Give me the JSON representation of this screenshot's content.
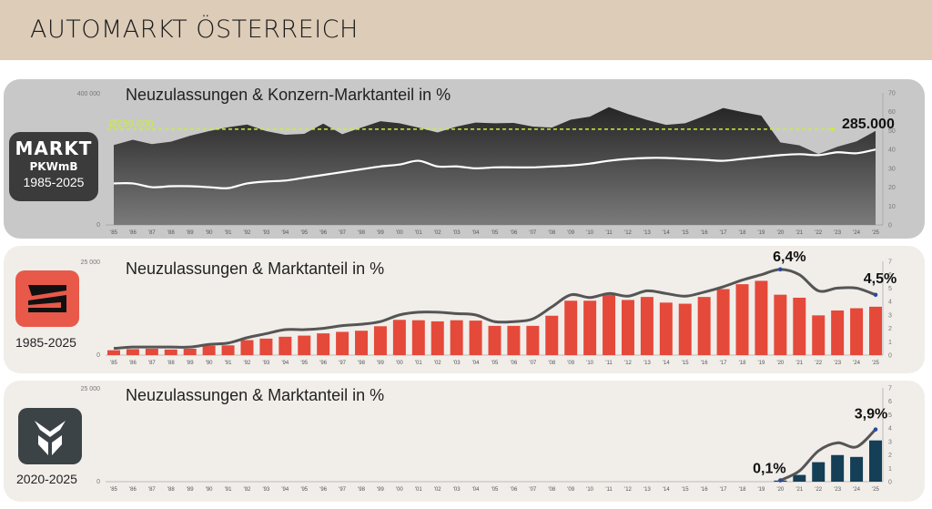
{
  "header": {
    "title": "AUTOMARKT ÖSTERREICH"
  },
  "x_labels": [
    "'85",
    "'86",
    "'87",
    "'88",
    "'89",
    "'90",
    "'91",
    "'92",
    "'93",
    "'94",
    "'95",
    "'96",
    "'97",
    "'98",
    "'99",
    "'00",
    "'01",
    "'02",
    "'03",
    "'04",
    "'05",
    "'06",
    "'07",
    "'08",
    "'09",
    "'10",
    "'11",
    "'12",
    "'13",
    "'14",
    "'15",
    "'16",
    "'17",
    "'18",
    "'19",
    "'20",
    "'21",
    "'22",
    "'23",
    "'24",
    "'25"
  ],
  "market": {
    "badge_line1": "MARKT",
    "badge_line2": "PKWmB",
    "badge_line3": "1985-2025",
    "title": "Neuzulassungen  & Konzern-Marktanteil  in %",
    "left_ticks": [
      "400 000",
      "0"
    ],
    "right_ticks": [
      "70",
      "60",
      "50",
      "40",
      "30",
      "20",
      "10",
      "0"
    ],
    "avg_label": "Ø290.000",
    "end_label": "285.000",
    "colors": {
      "area": "#2c2c2c",
      "line": "#ffffff",
      "avg": "#c8ee3c"
    }
  },
  "seat": {
    "title": "Neuzulassungen  & Marktanteil  in %",
    "years": "1985-2025",
    "left_ticks": [
      "25 000",
      "0"
    ],
    "right_ticks": [
      "7",
      "6",
      "5",
      "4",
      "3",
      "2",
      "1",
      "0"
    ],
    "label_peak": "6,4%",
    "label_end": "4,5%",
    "colors": {
      "bars": "#e5493a",
      "line": "#555555"
    }
  },
  "cupra": {
    "title": "Neuzulassungen  & Marktanteil  in %",
    "years": "2020-2025",
    "left_ticks": [
      "25 000",
      "0"
    ],
    "right_ticks": [
      "7",
      "6",
      "5",
      "4",
      "3",
      "2",
      "1",
      "0"
    ],
    "label_start": "0,1%",
    "label_end": "3,9%",
    "colors": {
      "bars": "#143f57",
      "line": "#555555"
    }
  },
  "chart_data": [
    {
      "type": "area",
      "title": "Neuzulassungen  & Konzern-Marktanteil  in %",
      "x": [
        "'85",
        "'86",
        "'87",
        "'88",
        "'89",
        "'90",
        "'91",
        "'92",
        "'93",
        "'94",
        "'95",
        "'96",
        "'97",
        "'98",
        "'99",
        "'00",
        "'01",
        "'02",
        "'03",
        "'04",
        "'05",
        "'06",
        "'07",
        "'08",
        "'09",
        "'10",
        "'11",
        "'12",
        "'13",
        "'14",
        "'15",
        "'16",
        "'17",
        "'18",
        "'19",
        "'20",
        "'21",
        "'22",
        "'23",
        "'24",
        "'25"
      ],
      "ylim_left": [
        0,
        400000
      ],
      "ylim_right": [
        0,
        70
      ],
      "reference_line": {
        "label": "Ø290.000",
        "value": 290000
      },
      "series": [
        {
          "name": "Neuzulassungen",
          "axis": "left",
          "values": [
            242000,
            258000,
            245000,
            252000,
            270000,
            284000,
            296000,
            304000,
            284000,
            273000,
            276000,
            307000,
            275000,
            295000,
            314000,
            308000,
            295000,
            280000,
            298000,
            310000,
            308000,
            309000,
            298000,
            295000,
            319000,
            328000,
            357000,
            336000,
            318000,
            303000,
            308000,
            330000,
            354000,
            342000,
            331000,
            250000,
            241000,
            215000,
            237000,
            253000,
            285000
          ]
        },
        {
          "name": "Konzern-Marktanteil",
          "axis": "right",
          "values": [
            22,
            22,
            20,
            20.5,
            20.5,
            20,
            19.5,
            22,
            23,
            23.5,
            25,
            26.5,
            28,
            29.5,
            31,
            32,
            34,
            31,
            31,
            30,
            30.5,
            30.5,
            30.5,
            31,
            31.5,
            32.5,
            34,
            35,
            35.5,
            35.5,
            35,
            34.5,
            34,
            35,
            36,
            37,
            37.5,
            37,
            38.5,
            38,
            40
          ]
        }
      ]
    },
    {
      "type": "bar",
      "title": "Neuzulassungen  & Marktanteil  in %",
      "x": [
        "'85",
        "'86",
        "'87",
        "'88",
        "'89",
        "'90",
        "'91",
        "'92",
        "'93",
        "'94",
        "'95",
        "'96",
        "'97",
        "'98",
        "'99",
        "'00",
        "'01",
        "'02",
        "'03",
        "'04",
        "'05",
        "'06",
        "'07",
        "'08",
        "'09",
        "'10",
        "'11",
        "'12",
        "'13",
        "'14",
        "'15",
        "'16",
        "'17",
        "'18",
        "'19",
        "'20",
        "'21",
        "'22",
        "'23",
        "'24",
        "'25"
      ],
      "ylim_left": [
        0,
        25000
      ],
      "ylim_right": [
        0,
        7
      ],
      "series": [
        {
          "name": "Neuzulassungen",
          "axis": "left",
          "values": [
            1300,
            1600,
            1700,
            1500,
            1700,
            2500,
            2600,
            4000,
            4400,
            4900,
            5200,
            5800,
            6200,
            6500,
            7700,
            9400,
            9300,
            9000,
            9300,
            9200,
            7800,
            7800,
            7800,
            10500,
            14500,
            14500,
            16100,
            14700,
            15500,
            14000,
            13700,
            15500,
            17600,
            18900,
            19800,
            16100,
            15300,
            10600,
            11900,
            12500,
            12900
          ]
        },
        {
          "name": "Marktanteil",
          "axis": "right",
          "values": [
            0.5,
            0.6,
            0.6,
            0.6,
            0.6,
            0.8,
            0.9,
            1.3,
            1.6,
            1.9,
            1.9,
            2.0,
            2.2,
            2.3,
            2.5,
            3.0,
            3.2,
            3.2,
            3.1,
            3.0,
            2.5,
            2.5,
            2.7,
            3.6,
            4.5,
            4.3,
            4.6,
            4.4,
            4.8,
            4.6,
            4.4,
            4.7,
            5.1,
            5.6,
            6.0,
            6.4,
            6.0,
            4.8,
            5.0,
            5.0,
            4.5
          ]
        }
      ]
    },
    {
      "type": "bar",
      "title": "Neuzulassungen  & Marktanteil  in %",
      "x": [
        "'85",
        "'86",
        "'87",
        "'88",
        "'89",
        "'90",
        "'91",
        "'92",
        "'93",
        "'94",
        "'95",
        "'96",
        "'97",
        "'98",
        "'99",
        "'00",
        "'01",
        "'02",
        "'03",
        "'04",
        "'05",
        "'06",
        "'07",
        "'08",
        "'09",
        "'10",
        "'11",
        "'12",
        "'13",
        "'14",
        "'15",
        "'16",
        "'17",
        "'18",
        "'19",
        "'20",
        "'21",
        "'22",
        "'23",
        "'24",
        "'25"
      ],
      "ylim_left": [
        0,
        25000
      ],
      "ylim_right": [
        0,
        7
      ],
      "series": [
        {
          "name": "Neuzulassungen",
          "axis": "left",
          "values": [
            null,
            null,
            null,
            null,
            null,
            null,
            null,
            null,
            null,
            null,
            null,
            null,
            null,
            null,
            null,
            null,
            null,
            null,
            null,
            null,
            null,
            null,
            null,
            null,
            null,
            null,
            null,
            null,
            null,
            null,
            null,
            null,
            null,
            null,
            null,
            300,
            1800,
            5200,
            7100,
            6600,
            11000
          ]
        },
        {
          "name": "Marktanteil",
          "axis": "right",
          "values": [
            null,
            null,
            null,
            null,
            null,
            null,
            null,
            null,
            null,
            null,
            null,
            null,
            null,
            null,
            null,
            null,
            null,
            null,
            null,
            null,
            null,
            null,
            null,
            null,
            null,
            null,
            null,
            null,
            null,
            null,
            null,
            null,
            null,
            null,
            null,
            0.1,
            0.8,
            2.3,
            2.9,
            2.6,
            3.9
          ]
        }
      ]
    }
  ]
}
